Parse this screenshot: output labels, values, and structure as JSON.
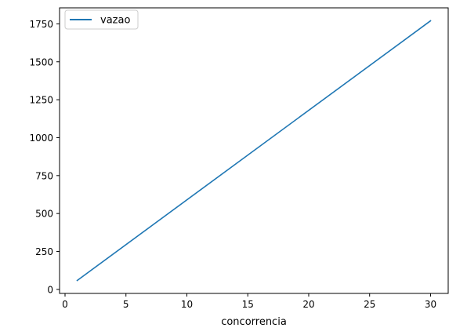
{
  "chart_data": {
    "type": "line",
    "title": "",
    "xlabel": "concorrencia",
    "ylabel": "",
    "x": [
      1,
      30
    ],
    "series": [
      {
        "name": "vazao",
        "values": [
          59,
          1770
        ],
        "color": "#1f77b4"
      }
    ],
    "xlim": [
      -0.45,
      31.45
    ],
    "ylim": [
      -26.5,
      1855.5
    ],
    "xticks": [
      0,
      5,
      10,
      15,
      20,
      25,
      30
    ],
    "yticks": [
      0,
      250,
      500,
      750,
      1000,
      1250,
      1500,
      1750
    ],
    "grid": false,
    "legend_position": "top-left"
  }
}
